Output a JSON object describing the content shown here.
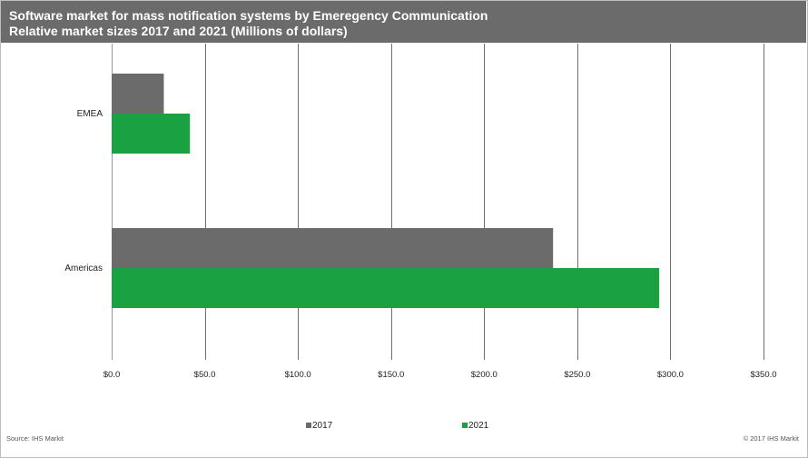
{
  "header": {
    "title_line1": "Software market for mass notification systems by Emeregency Communication",
    "title_line2": "Relative market sizes 2017 and 2021 (Millions of dollars)"
  },
  "chart_data": {
    "type": "bar",
    "orientation": "horizontal",
    "categories": [
      "EMEA",
      "Americas"
    ],
    "series": [
      {
        "name": "2017",
        "values": [
          28,
          237
        ],
        "color": "#6b6b6b"
      },
      {
        "name": "2021",
        "values": [
          42,
          294
        ],
        "color": "#1aa242"
      }
    ],
    "xlim": [
      0,
      350
    ],
    "xticks": [
      0,
      50,
      100,
      150,
      200,
      250,
      300,
      350
    ],
    "xtick_labels": [
      "$0.0",
      "$50.0",
      "$100.0",
      "$150.0",
      "$200.0",
      "$250.0",
      "$300.0",
      "$350.0"
    ],
    "grid": true,
    "legend_position": "bottom"
  },
  "footer": {
    "source": "Source: IHS Markit",
    "copyright": "© 2017 IHS Markit"
  }
}
